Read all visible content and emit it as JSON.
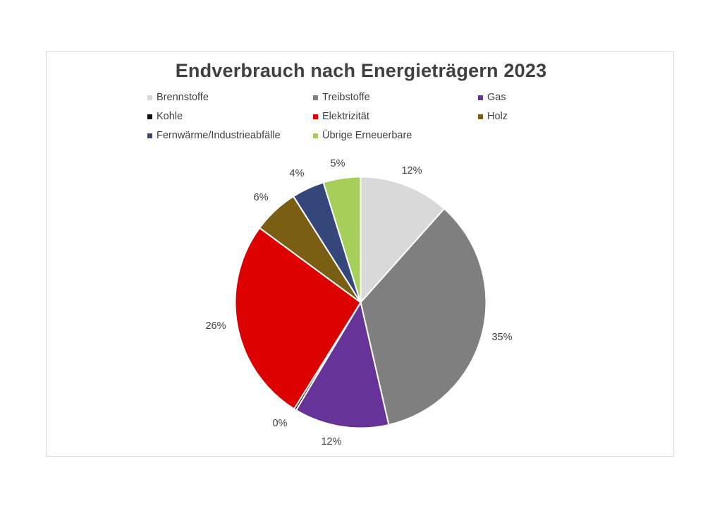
{
  "chart_data": {
    "type": "pie",
    "title": "Endverbrauch nach Energieträgern 2023",
    "legend_position": "top",
    "categories": [
      "Brennstoffe",
      "Treibstoffe",
      "Gas",
      "Kohle",
      "Elektrizität",
      "Holz",
      "Fernwärme/Industrieabfälle",
      "Übrige Erneuerbare"
    ],
    "values": [
      11.6,
      34.8,
      12.2,
      0.3,
      26.2,
      5.9,
      4.2,
      4.8
    ],
    "data_labels": [
      "12%",
      "35%",
      "12%",
      "0%",
      "26%",
      "6%",
      "4%",
      "5%"
    ],
    "colors": [
      "#d9d9d9",
      "#7f7f7f",
      "#663399",
      "#0d0d0d",
      "#dc0000",
      "#7a5e14",
      "#34467a",
      "#a6cf5a"
    ],
    "start_angle_deg": 0,
    "direction": "clockwise"
  },
  "title": "Endverbrauch nach Energieträgern 2023",
  "legend": [
    {
      "label": "Brennstoffe",
      "color": "#d9d9d9"
    },
    {
      "label": "Treibstoffe",
      "color": "#7f7f7f"
    },
    {
      "label": "Gas",
      "color": "#663399"
    },
    {
      "label": "Kohle",
      "color": "#0d0d0d"
    },
    {
      "label": "Elektrizität",
      "color": "#dc0000"
    },
    {
      "label": "Holz",
      "color": "#7a5e14"
    },
    {
      "label": "Fernwärme/Industrieabfälle",
      "color": "#34467a"
    },
    {
      "label": "Übrige Erneuerbare",
      "color": "#a6cf5a"
    }
  ],
  "labels": [
    "12%",
    "35%",
    "12%",
    "0%",
    "26%",
    "6%",
    "4%",
    "5%"
  ]
}
